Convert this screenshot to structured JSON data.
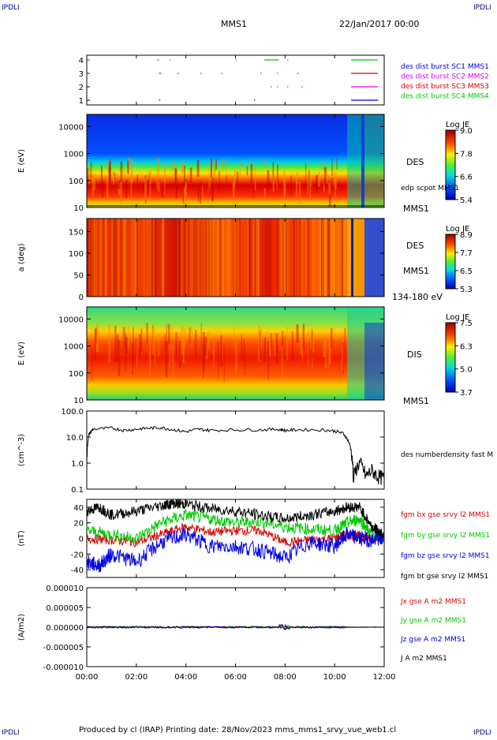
{
  "corner_label": "IPDLI",
  "header": {
    "spacecraft": "MMS1",
    "datetime": "22/Jan/2017 00:00"
  },
  "footer": {
    "text": "Produced by cl (IRAP)   Printing date: 28/Nov/2023   mms_mms1_srvy_vue_web1.cl"
  },
  "colors": {
    "red": "#d40000",
    "green": "#00c800",
    "blue": "#0000e6",
    "magenta": "#e000e0",
    "black": "#000000",
    "spec_bg": "#0a2be0"
  },
  "chart_data": [
    {
      "type": "line",
      "panel": "burst-availability",
      "yticks": [
        "1",
        "2",
        "3",
        "4"
      ],
      "series": [
        {
          "name": "des dist burst SC1 MMS1",
          "color": "#0000e6",
          "y": 1,
          "intervals": [
            [
              "00:02",
              "00:06"
            ],
            [
              "02:55",
              "02:58"
            ],
            [
              "06:45",
              "06:48"
            ],
            [
              "10:40",
              "11:45"
            ]
          ]
        },
        {
          "name": "des dist burst SC2 MMS2",
          "color": "#e000e0",
          "y": 2,
          "intervals": [
            [
              "07:25",
              "07:28"
            ],
            [
              "07:40",
              "07:43"
            ],
            [
              "08:05",
              "08:08"
            ],
            [
              "08:40",
              "08:43"
            ],
            [
              "10:40",
              "11:45"
            ]
          ]
        },
        {
          "name": "des dist burst SC3 MMS3",
          "color": "#d40000",
          "y": 3,
          "intervals": [
            [
              "00:01",
              "00:06"
            ],
            [
              "02:55",
              "03:00"
            ],
            [
              "03:40",
              "03:43"
            ],
            [
              "04:35",
              "04:38"
            ],
            [
              "05:25",
              "05:28"
            ],
            [
              "07:00",
              "07:03"
            ],
            [
              "07:40",
              "07:43"
            ],
            [
              "08:30",
              "08:33"
            ],
            [
              "10:40",
              "11:45"
            ]
          ]
        },
        {
          "name": "des dist burst SC4 MMS4",
          "color": "#00c800",
          "y": 4,
          "intervals": [
            [
              "00:01",
              "00:06"
            ],
            [
              "02:50",
              "02:55"
            ],
            [
              "03:20",
              "03:23"
            ],
            [
              "06:00",
              "06:03"
            ],
            [
              "07:10",
              "07:45"
            ],
            [
              "08:05",
              "08:08"
            ],
            [
              "10:40",
              "11:45"
            ]
          ]
        }
      ]
    },
    {
      "type": "heatmap",
      "panel": "des-energy",
      "ylabel": "E (eV)",
      "yticks": [
        "10",
        "100",
        "1000",
        "10000"
      ],
      "right_labels": [
        "DES",
        "edp scpot MMS1",
        "MMS1"
      ],
      "colorbar": {
        "title": "Log JE",
        "ticks": [
          "9.0",
          "7.8",
          "6.6",
          "5.4"
        ]
      }
    },
    {
      "type": "heatmap",
      "panel": "des-pitch-angle",
      "ylabel": "a (deg)",
      "yticks": [
        "0",
        "50",
        "100",
        "150"
      ],
      "right_labels": [
        "DES",
        "MMS1",
        "134-180 eV"
      ],
      "colorbar": {
        "title": "Log JE",
        "ticks": [
          "8.9",
          "7.7",
          "6.5",
          "5.3"
        ]
      }
    },
    {
      "type": "heatmap",
      "panel": "dis-energy",
      "ylabel": "E (eV)",
      "yticks": [
        "10",
        "100",
        "1000",
        "10000"
      ],
      "right_labels": [
        "DIS",
        "MMS1"
      ],
      "colorbar": {
        "title": "Log JE",
        "ticks": [
          "7.5",
          "6.3",
          "5.0",
          "3.7"
        ]
      }
    },
    {
      "type": "line",
      "panel": "density",
      "ylabel": "(cm^-3)",
      "yticks": [
        "0.1",
        "1.0",
        "10.0",
        "100.0"
      ],
      "ylim": [
        0.1,
        100
      ],
      "yscale": "log",
      "series": [
        {
          "name": "des numberdensity fast M",
          "color": "#000000",
          "x": [
            "00:00",
            "00:05",
            "00:15",
            "01:00",
            "01:30",
            "02:00",
            "02:30",
            "03:00",
            "03:30",
            "04:00",
            "04:30",
            "05:00",
            "06:00",
            "07:00",
            "07:45",
            "08:00",
            "08:30",
            "09:30",
            "10:00",
            "10:20",
            "10:35",
            "10:45",
            "11:00",
            "11:15",
            "11:30",
            "11:45",
            "12:00"
          ],
          "values": [
            0.6,
            12,
            20,
            22,
            18,
            20,
            22,
            23,
            19,
            16,
            20,
            18,
            19,
            19,
            20,
            18,
            19,
            19,
            17,
            14,
            6,
            0.2,
            1.0,
            0.3,
            0.5,
            0.3,
            0.25
          ]
        }
      ]
    },
    {
      "type": "line",
      "panel": "magnetic-field",
      "ylabel": "(nT)",
      "yticks": [
        "-40",
        "-20",
        "0",
        "20",
        "40"
      ],
      "ylim": [
        -50,
        50
      ],
      "series": [
        {
          "name": "fgm bx gse srvy l2 MMS1",
          "color": "#d40000",
          "x": [
            "00:00",
            "01:00",
            "02:00",
            "03:00",
            "04:00",
            "05:00",
            "06:00",
            "07:00",
            "08:00",
            "09:00",
            "10:00",
            "10:30",
            "11:00",
            "11:30",
            "12:00"
          ],
          "values": [
            0,
            -2,
            -5,
            5,
            15,
            8,
            10,
            10,
            -5,
            -2,
            0,
            5,
            3,
            0,
            2
          ]
        },
        {
          "name": "fgm by gse srvy l2 MMS1",
          "color": "#00c800",
          "x": [
            "00:00",
            "01:00",
            "02:00",
            "03:00",
            "04:00",
            "05:00",
            "06:00",
            "07:00",
            "08:00",
            "09:00",
            "10:00",
            "10:30",
            "11:00",
            "11:30",
            "12:00"
          ],
          "values": [
            10,
            5,
            0,
            20,
            30,
            25,
            20,
            22,
            15,
            12,
            10,
            20,
            25,
            5,
            3
          ]
        },
        {
          "name": "fgm bz gse srvy l2 MMS1",
          "color": "#0000e6",
          "x": [
            "00:00",
            "00:30",
            "01:00",
            "02:00",
            "03:00",
            "04:00",
            "05:00",
            "06:00",
            "07:00",
            "08:00",
            "09:00",
            "10:00",
            "10:30",
            "11:00",
            "11:30",
            "12:00"
          ],
          "values": [
            -30,
            -35,
            -20,
            -30,
            -5,
            5,
            -10,
            -10,
            -15,
            -25,
            -5,
            -10,
            5,
            0,
            -2,
            0
          ]
        },
        {
          "name": "fgm bt gse srvy l2 MMS1",
          "color": "#000000",
          "x": [
            "00:00",
            "00:30",
            "01:00",
            "02:00",
            "03:00",
            "03:30",
            "04:00",
            "05:00",
            "06:00",
            "07:00",
            "08:00",
            "09:00",
            "10:00",
            "10:30",
            "11:00",
            "11:30",
            "12:00"
          ],
          "values": [
            35,
            40,
            30,
            35,
            42,
            45,
            44,
            38,
            35,
            30,
            25,
            30,
            35,
            40,
            40,
            15,
            5
          ]
        }
      ]
    },
    {
      "type": "line",
      "panel": "current-density",
      "ylabel": "(A/m2)",
      "yticks": [
        "0.000010",
        "0.000005",
        "0.000000",
        "-0.000005",
        "-0.000010"
      ],
      "ylim": [
        -1e-05,
        1e-05
      ],
      "series": [
        {
          "name": "Jx gse A m2 MMS1",
          "color": "#d40000"
        },
        {
          "name": "Jy gse A m2 MMS1",
          "color": "#00c800"
        },
        {
          "name": "Jz gse A m2 MMS1",
          "color": "#0000e6"
        },
        {
          "name": "J A m2 MMS1",
          "color": "#000000"
        }
      ]
    }
  ],
  "xaxis": {
    "ticks": [
      "00:00",
      "02:00",
      "04:00",
      "06:00",
      "08:00",
      "10:00",
      "12:00"
    ]
  }
}
